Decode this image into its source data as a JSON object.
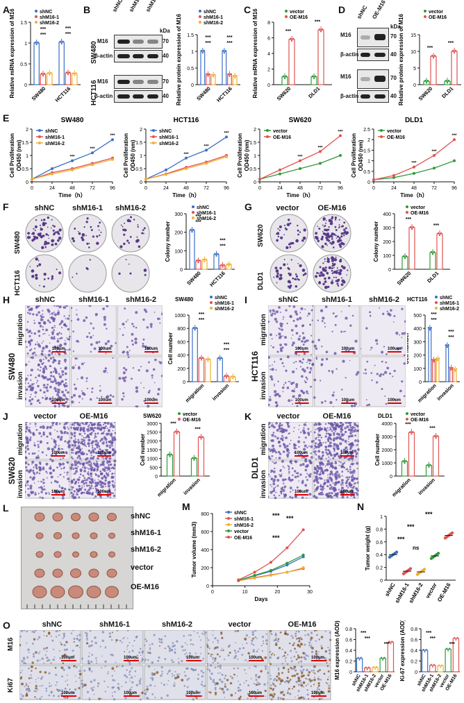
{
  "panel_letters": [
    "A",
    "B",
    "C",
    "D",
    "E",
    "F",
    "G",
    "H",
    "I",
    "J",
    "K",
    "L",
    "M",
    "N",
    "O"
  ],
  "colors": {
    "shNC": "#3b6fc4",
    "shM16_1": "#e0524f",
    "shM16_2": "#f0b030",
    "vector": "#2e9a3a",
    "OE_M16": "#e0524f",
    "tumor": "#c98a7a"
  },
  "legends": {
    "sh": [
      "shNC",
      "shM16-1",
      "shM16-2"
    ],
    "oe": [
      "vector",
      "OE-M16"
    ]
  },
  "blot": {
    "kda": "kDa",
    "m16": "M16",
    "actin": "β-actin",
    "k70": "70",
    "k40": "40",
    "lanes_sh": [
      "shNC",
      "shM16-1",
      "shM16-2"
    ],
    "lanes_oe": [
      "shNC",
      "OE-M16"
    ],
    "cells_sh": [
      "SW480",
      "HCT116"
    ],
    "cells_oe": [
      "SW620",
      "DLD1"
    ]
  },
  "E_titles": [
    "SW480",
    "HCT116",
    "SW620",
    "DLD1"
  ],
  "E_ylabel": [
    "Cell Proliferation",
    "OD450 (nm)"
  ],
  "E_xlabel": "Time（h）",
  "F": {
    "cols": [
      "shNC",
      "shM16-1",
      "shM16-2"
    ],
    "rows": [
      "SW480",
      "HCT116"
    ]
  },
  "G": {
    "cols": [
      "vector",
      "OE-M16"
    ],
    "rows": [
      "SW620",
      "DLD1"
    ]
  },
  "HI_cols": [
    "shNC",
    "shM16-1",
    "shM16-2"
  ],
  "JK_cols": [
    "vector",
    "OE-M16"
  ],
  "rows_mi": [
    "migration",
    "invasion"
  ],
  "H_row": "SW480",
  "I_row": "HCT116",
  "J_row": "SW620",
  "K_row": "DLD1",
  "scale": "100um",
  "L_labels": [
    "shNC",
    "shM16-1",
    "shM16-2",
    "vector",
    "OE-M16"
  ],
  "O_cols": [
    "shNC",
    "shM16-1",
    "shM16-2",
    "vector",
    "OE-M16"
  ],
  "O_rows": [
    "M16",
    "Ki67"
  ],
  "chart_data": [
    {
      "id": "A",
      "type": "bar",
      "categories": [
        "SW480",
        "HCT116"
      ],
      "ylabel": "Relative mRNA expression of M16",
      "ylim": [
        0,
        1.5
      ],
      "yticks": [
        0,
        0.5,
        1.0,
        1.5
      ],
      "series": [
        {
          "name": "shNC",
          "values": [
            1.0,
            1.02
          ]
        },
        {
          "name": "shM16-1",
          "values": [
            0.25,
            0.28
          ]
        },
        {
          "name": "shM16-2",
          "values": [
            0.27,
            0.26
          ]
        }
      ],
      "sig": "***"
    },
    {
      "id": "B",
      "type": "bar",
      "categories": [
        "SW480",
        "HCT116"
      ],
      "ylabel": "Relative protein expression of M16",
      "ylim": [
        0,
        1.5
      ],
      "yticks": [
        0,
        0.5,
        1.0,
        1.5
      ],
      "series": [
        {
          "name": "shNC",
          "values": [
            1.0,
            1.0
          ]
        },
        {
          "name": "shM16-1",
          "values": [
            0.3,
            0.3
          ]
        },
        {
          "name": "shM16-2",
          "values": [
            0.28,
            0.25
          ]
        }
      ],
      "sig": "***"
    },
    {
      "id": "C",
      "type": "bar",
      "categories": [
        "SW620",
        "DLD1"
      ],
      "ylabel": "Relative mRNA expression of M16",
      "ylim": [
        0,
        8
      ],
      "yticks": [
        0,
        2,
        4,
        6,
        8
      ],
      "series": [
        {
          "name": "vector",
          "values": [
            1.0,
            1.0
          ]
        },
        {
          "name": "OE-M16",
          "values": [
            5.8,
            7.0
          ]
        }
      ],
      "sig": "***"
    },
    {
      "id": "D",
      "type": "bar",
      "categories": [
        "SW620",
        "DLD1"
      ],
      "ylabel": "Relative protein expression of M16",
      "ylim": [
        0,
        15
      ],
      "yticks": [
        0,
        5,
        10,
        15
      ],
      "series": [
        {
          "name": "vector",
          "values": [
            1.0,
            1.0
          ]
        },
        {
          "name": "OE-M16",
          "values": [
            8.5,
            10.0
          ]
        }
      ],
      "sig": "***"
    },
    {
      "id": "E1",
      "type": "line",
      "title": "SW480",
      "x": [
        0,
        24,
        48,
        72,
        96
      ],
      "ylim": [
        0,
        2.0
      ],
      "yticks": [
        0,
        0.5,
        1.0,
        1.5,
        2.0
      ],
      "xlabel": "Time（h）",
      "series": [
        {
          "name": "shNC",
          "values": [
            0.1,
            0.5,
            0.8,
            1.1,
            1.6
          ]
        },
        {
          "name": "shM16-1",
          "values": [
            0.1,
            0.35,
            0.5,
            0.7,
            0.9
          ]
        },
        {
          "name": "shM16-2",
          "values": [
            0.1,
            0.3,
            0.45,
            0.65,
            0.85
          ]
        }
      ]
    },
    {
      "id": "E2",
      "type": "line",
      "title": "HCT116",
      "x": [
        0,
        24,
        48,
        72,
        96
      ],
      "ylim": [
        0,
        2.0
      ],
      "yticks": [
        0,
        0.5,
        1.0,
        1.5,
        2.0
      ],
      "xlabel": "Time（h）",
      "series": [
        {
          "name": "shNC",
          "values": [
            0.1,
            0.45,
            0.9,
            1.2,
            1.7
          ]
        },
        {
          "name": "shM16-1",
          "values": [
            0.1,
            0.3,
            0.55,
            0.75,
            1.0
          ]
        },
        {
          "name": "shM16-2",
          "values": [
            0.1,
            0.28,
            0.5,
            0.7,
            0.95
          ]
        }
      ]
    },
    {
      "id": "E3",
      "type": "line",
      "title": "SW620",
      "x": [
        0,
        24,
        48,
        72,
        96
      ],
      "ylim": [
        0,
        2.0
      ],
      "yticks": [
        0,
        0.5,
        1.0,
        1.5,
        2.0
      ],
      "xlabel": "Time（h）",
      "series": [
        {
          "name": "vector",
          "values": [
            0.1,
            0.3,
            0.5,
            0.7,
            1.0
          ]
        },
        {
          "name": "OE-M16",
          "values": [
            0.1,
            0.45,
            0.8,
            1.15,
            1.75
          ]
        }
      ]
    },
    {
      "id": "E4",
      "type": "line",
      "title": "DLD1",
      "x": [
        0,
        24,
        48,
        72,
        96
      ],
      "ylim": [
        0,
        2.5
      ],
      "yticks": [
        0,
        0.5,
        1.0,
        1.5,
        2.0,
        2.5
      ],
      "xlabel": "Time（h）",
      "series": [
        {
          "name": "vector",
          "values": [
            0.1,
            0.2,
            0.4,
            0.65,
            1.0
          ]
        },
        {
          "name": "OE-M16",
          "values": [
            0.1,
            0.3,
            0.7,
            1.25,
            2.0
          ]
        }
      ]
    },
    {
      "id": "F",
      "type": "bar",
      "categories": [
        "SW480",
        "HCT116"
      ],
      "ylabel": "Colony number",
      "ylim": [
        0,
        300
      ],
      "yticks": [
        0,
        100,
        200,
        300
      ],
      "series": [
        {
          "name": "shNC",
          "values": [
            210,
            80
          ]
        },
        {
          "name": "shM16-1",
          "values": [
            45,
            20
          ]
        },
        {
          "name": "shM16-2",
          "values": [
            50,
            25
          ]
        }
      ],
      "sig": "***"
    },
    {
      "id": "G",
      "type": "bar",
      "categories": [
        "SW620",
        "DLD1"
      ],
      "ylabel": "Colony number",
      "ylim": [
        0,
        400
      ],
      "yticks": [
        0,
        100,
        200,
        300,
        400
      ],
      "series": [
        {
          "name": "vector",
          "values": [
            90,
            120
          ]
        },
        {
          "name": "OE-M16",
          "values": [
            300,
            255
          ]
        }
      ],
      "sig": "***"
    },
    {
      "id": "H",
      "type": "bar",
      "title": "SW480",
      "categories": [
        "migration",
        "invasion"
      ],
      "ylabel": "Cell number",
      "ylim": [
        0,
        1000
      ],
      "yticks": [
        0,
        200,
        400,
        600,
        800,
        1000
      ],
      "series": [
        {
          "name": "shNC",
          "values": [
            800,
            350
          ]
        },
        {
          "name": "shM16-1",
          "values": [
            350,
            80
          ]
        },
        {
          "name": "shM16-2",
          "values": [
            330,
            70
          ]
        }
      ],
      "sig": "***"
    },
    {
      "id": "I",
      "type": "bar",
      "title": "HCT116",
      "categories": [
        "migration",
        "invasion"
      ],
      "ylabel": "Cell number",
      "ylim": [
        0,
        500
      ],
      "yticks": [
        0,
        100,
        200,
        300,
        400,
        500
      ],
      "series": [
        {
          "name": "shNC",
          "values": [
            400,
            270
          ]
        },
        {
          "name": "shM16-1",
          "values": [
            160,
            100
          ]
        },
        {
          "name": "shM16-2",
          "values": [
            170,
            90
          ]
        }
      ],
      "sig": "***"
    },
    {
      "id": "J",
      "type": "bar",
      "title": "SW620",
      "categories": [
        "migration",
        "invasion"
      ],
      "ylabel": "Cell number",
      "ylim": [
        0,
        3000
      ],
      "yticks": [
        0,
        500,
        1000,
        1500,
        2000,
        2500,
        3000
      ],
      "series": [
        {
          "name": "vector",
          "values": [
            1200,
            1000
          ]
        },
        {
          "name": "OE-M16",
          "values": [
            2500,
            2200
          ]
        }
      ],
      "sig": "***"
    },
    {
      "id": "K",
      "type": "bar",
      "title": "DLD1",
      "categories": [
        "migration",
        "invasion"
      ],
      "ylabel": "Cell number",
      "ylim": [
        0,
        4000
      ],
      "yticks": [
        0,
        1000,
        2000,
        3000,
        4000
      ],
      "series": [
        {
          "name": "vector",
          "values": [
            1100,
            800
          ]
        },
        {
          "name": "OE-M16",
          "values": [
            3300,
            3000
          ]
        }
      ],
      "sig": "***"
    },
    {
      "id": "M",
      "type": "line",
      "x": [
        8,
        13,
        18,
        23,
        28
      ],
      "xlabel": "Days",
      "ylabel": "Tumor volume (mm3)",
      "ylim": [
        0,
        800
      ],
      "yticks": [
        0,
        200,
        400,
        600,
        800
      ],
      "xticks": [
        0,
        10,
        20,
        30
      ],
      "series": [
        {
          "name": "shNC",
          "values": [
            60,
            110,
            160,
            230,
            320
          ]
        },
        {
          "name": "shM16-1",
          "values": [
            55,
            90,
            120,
            150,
            190
          ]
        },
        {
          "name": "shM16-2",
          "values": [
            55,
            85,
            115,
            150,
            200
          ]
        },
        {
          "name": "vector",
          "values": [
            60,
            115,
            170,
            250,
            340
          ]
        },
        {
          "name": "OE-M16",
          "values": [
            65,
            150,
            260,
            420,
            620
          ]
        }
      ]
    },
    {
      "id": "N",
      "type": "scatter",
      "categories": [
        "shNC",
        "shM16-1",
        "shM16-2",
        "vector",
        "OE-M16"
      ],
      "ylabel": "Tumor weight (g)",
      "ylim": [
        0,
        1.0
      ],
      "yticks": [
        0,
        0.2,
        0.4,
        0.6,
        0.8,
        1.0
      ],
      "values": [
        0.4,
        0.14,
        0.13,
        0.38,
        0.7
      ],
      "sig": [
        "***",
        "***",
        "ns",
        "***"
      ]
    },
    {
      "id": "O1",
      "type": "bar",
      "categories": [
        "shNC",
        "shM16-1",
        "shM16-2",
        "vector",
        "OE-M16"
      ],
      "ylabel": "M16 expression (AOD)",
      "ylim": [
        0,
        0.8
      ],
      "yticks": [
        0,
        0.2,
        0.4,
        0.6,
        0.8
      ],
      "values": [
        0.25,
        0.07,
        0.08,
        0.25,
        0.55
      ],
      "sig": "***"
    },
    {
      "id": "O2",
      "type": "bar",
      "categories": [
        "shNC",
        "shM16-1",
        "shM16-2",
        "vector",
        "OE-M16"
      ],
      "ylabel": "Ki-67 expression (AOD)",
      "ylim": [
        0,
        0.8
      ],
      "yticks": [
        0,
        0.2,
        0.4,
        0.6,
        0.8
      ],
      "values": [
        0.4,
        0.12,
        0.11,
        0.42,
        0.62
      ],
      "sig": "***"
    }
  ]
}
